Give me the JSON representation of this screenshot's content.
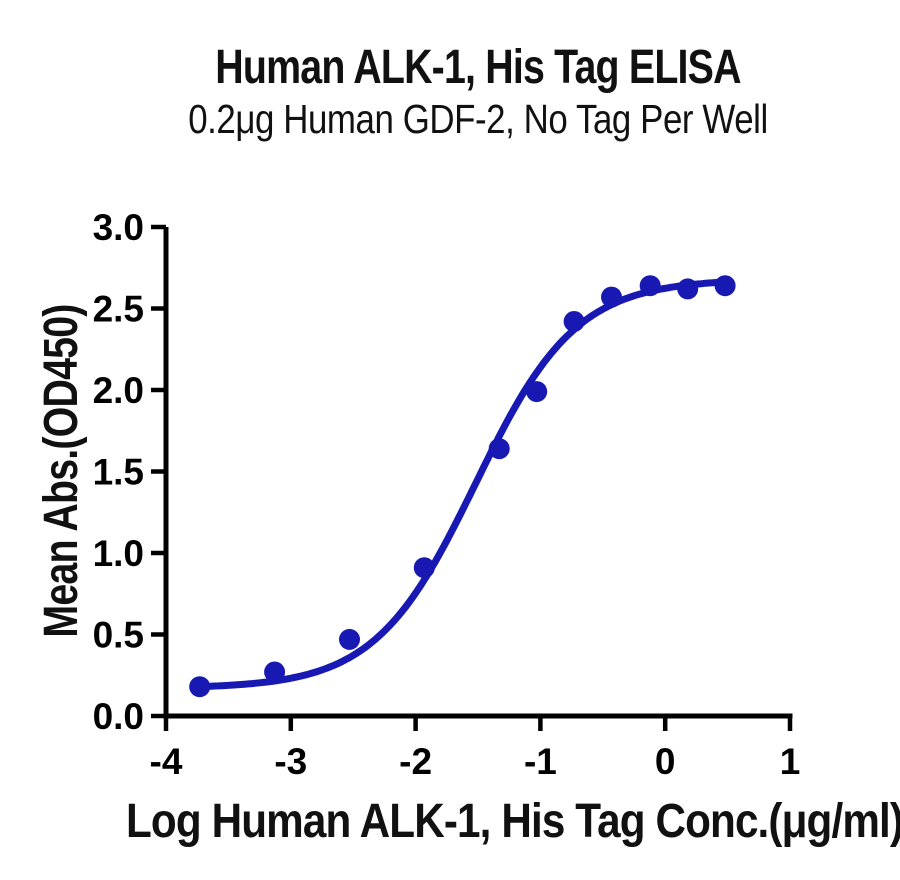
{
  "header": {
    "title": "Human ALK-1, His Tag ELISA",
    "subtitle": "0.2μg Human GDF-2, No Tag Per Well"
  },
  "colors": {
    "accent_blue": "#1818b2",
    "axis_black": "#000000",
    "text_black": "#111111",
    "background": "#ffffff"
  },
  "chart_data": {
    "type": "scatter",
    "title": "Human ALK-1, His Tag ELISA",
    "subtitle": "0.2μg Human GDF-2, No Tag Per Well",
    "xlabel": "Log Human ALK-1, His Tag Conc.(μg/ml)",
    "ylabel": "Mean Abs.(OD450)",
    "xlim": [
      -4,
      1
    ],
    "ylim": [
      0,
      3
    ],
    "grid": false,
    "legend_position": "none",
    "xticks": {
      "values": [
        -4,
        -3,
        -2,
        -1,
        0,
        1
      ],
      "labels": [
        "-4",
        "-3",
        "-2",
        "-1",
        "0",
        "1"
      ]
    },
    "yticks": {
      "values": [
        0,
        0.5,
        1,
        1.5,
        2,
        2.5,
        3
      ],
      "labels": [
        "0.0",
        "0.5",
        "1.0",
        "1.5",
        "2.0",
        "2.5",
        "3.0"
      ]
    },
    "series": [
      {
        "name": "Human ALK-1, His Tag",
        "marker": "circle",
        "color": "#1818b2",
        "x": [
          -3.73,
          -3.13,
          -2.53,
          -1.93,
          -1.33,
          -1.03,
          -0.73,
          -0.43,
          -0.12,
          0.18,
          0.48
        ],
        "y": [
          0.18,
          0.27,
          0.47,
          0.91,
          1.64,
          1.99,
          2.42,
          2.57,
          2.64,
          2.62,
          2.64
        ]
      }
    ],
    "fit_curve": {
      "model": "4PL",
      "bottom": 0.17,
      "top": 2.68,
      "logEC50": -1.52,
      "hill": 1.08,
      "x_start": -3.73,
      "x_end": 0.47,
      "color": "#1818b2"
    }
  }
}
